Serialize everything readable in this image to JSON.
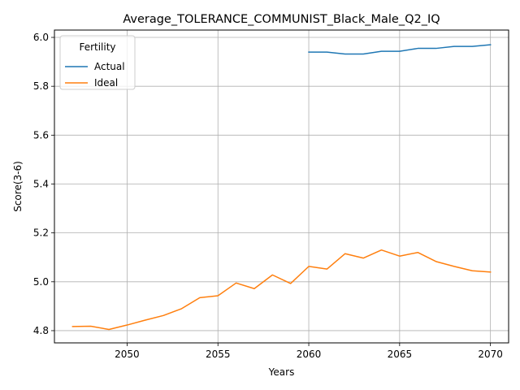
{
  "chart_data": {
    "type": "line",
    "title": "Average_TOLERANCE_COMMUNIST_Black_Male_Q2_IQ",
    "xlabel": "Years",
    "ylabel": "Score(3-6)",
    "xlim": [
      2046,
      2071
    ],
    "ylim": [
      4.75,
      6.03
    ],
    "xticks": [
      2050,
      2055,
      2060,
      2065,
      2070
    ],
    "yticks": [
      4.8,
      5.0,
      5.2,
      5.4,
      5.6,
      5.8,
      6.0
    ],
    "ytick_labels": [
      "4.8",
      "5.0",
      "5.2",
      "5.4",
      "5.6",
      "5.8",
      "6.0"
    ],
    "grid": true,
    "legend": {
      "title": "Fertility",
      "placement": "top-left"
    },
    "series": [
      {
        "name": "Actual",
        "color": "#1f77b4",
        "x": [
          2060,
          2061,
          2062,
          2063,
          2064,
          2065,
          2066,
          2067,
          2068,
          2069,
          2070
        ],
        "values": [
          5.94,
          5.94,
          5.932,
          5.932,
          5.943,
          5.943,
          5.955,
          5.955,
          5.963,
          5.963,
          5.97
        ]
      },
      {
        "name": "Ideal",
        "color": "#ff7f0e",
        "x": [
          2047,
          2048,
          2049,
          2050,
          2051,
          2052,
          2053,
          2054,
          2055,
          2056,
          2057,
          2058,
          2059,
          2060,
          2061,
          2062,
          2063,
          2064,
          2065,
          2066,
          2067,
          2068,
          2069,
          2070
        ],
        "values": [
          4.817,
          4.818,
          4.805,
          4.823,
          4.843,
          4.862,
          4.89,
          4.935,
          4.943,
          4.995,
          4.972,
          5.028,
          4.993,
          5.063,
          5.052,
          5.115,
          5.097,
          5.13,
          5.105,
          5.12,
          5.083,
          5.063,
          5.045,
          5.04
        ]
      }
    ]
  }
}
